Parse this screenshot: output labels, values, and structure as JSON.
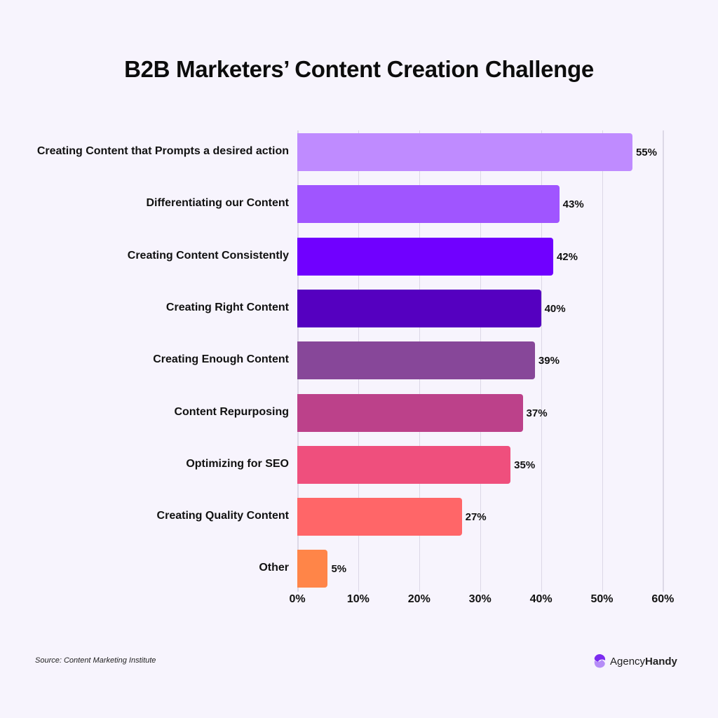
{
  "chart_data": {
    "type": "bar",
    "orientation": "horizontal",
    "title": "B2B Marketers’ Content Creation Challenge",
    "xlabel": "",
    "ylabel": "",
    "xlim": [
      0,
      60
    ],
    "grid": true,
    "legend": "none",
    "x_ticks": [
      "0%",
      "10%",
      "20%",
      "30%",
      "40%",
      "50%",
      "60%"
    ],
    "categories": [
      "Creating Content that Prompts a desired action",
      "Differentiating our Content",
      "Creating Content Consistently",
      "Creating Right Content",
      "Creating Enough Content",
      "Content Repurposing",
      "Optimizing for SEO",
      "Creating Quality Content",
      "Other"
    ],
    "values": [
      55,
      43,
      42,
      40,
      39,
      37,
      35,
      27,
      5
    ],
    "value_labels": [
      "55%",
      "43%",
      "42%",
      "40%",
      "39%",
      "37%",
      "35%",
      "27%",
      "5%"
    ],
    "colors": [
      "#bf8bff",
      "#a055ff",
      "#7000ff",
      "#5500c0",
      "#874799",
      "#bc418a",
      "#ef4f7d",
      "#ff6668",
      "#ff8548"
    ]
  },
  "footer": {
    "source": "Source: Content Marketing Institute",
    "brand_light": "Agency",
    "brand_bold": "Handy"
  }
}
